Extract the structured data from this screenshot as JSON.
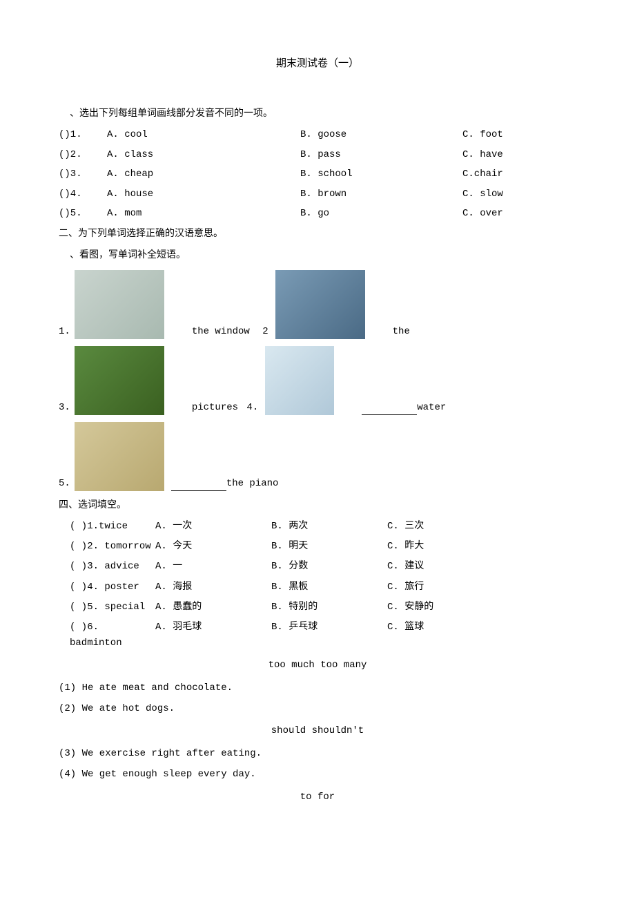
{
  "title": "期末测试卷（一）",
  "section1": {
    "heading": "、选出下列每组单词画线部分发音不同的一项。",
    "rows": [
      {
        "num": "()1.",
        "a": "A. cool",
        "b": "B. goose",
        "c": "C. foot"
      },
      {
        "num": "()2.",
        "a": "A. class",
        "b": "B. pass",
        "c": "C. have"
      },
      {
        "num": "()3.",
        "a": "A. cheap",
        "b": "B. school",
        "c": "C.chair"
      },
      {
        "num": "()4.",
        "a": "A. house",
        "b": "B. brown",
        "c": "C. slow"
      },
      {
        "num": "()5.",
        "a": "A. mom",
        "b": "B. go",
        "c": "C. over"
      }
    ]
  },
  "section2": {
    "heading": "二、为下列单词选择正确的汉语意思。",
    "sub": "、看图，写单词补全短语。"
  },
  "pics": {
    "items": [
      {
        "num": "1.",
        "text_after": "the window",
        "right_num": "2",
        "right_text": "the",
        "bg": "#c9d4ce",
        "bg2": "#7a9bb5"
      },
      {
        "num": "3.",
        "text_after": "pictures",
        "right_num": "4.",
        "right_text": "water",
        "bg": "#5a8a3f",
        "bg2": "#d9e8f0",
        "has_blank": true
      },
      {
        "num": "5.",
        "text_after": "the piano",
        "bg": "#d4c89a",
        "has_blank_before": true
      }
    ]
  },
  "section4_heading": "四、选词填空。",
  "vocab": {
    "rows": [
      {
        "num": "(  )1.twice",
        "a": "A.",
        "ach": "一次",
        "b": "B.",
        "bch": "两次",
        "c": "C.",
        "cch": "三次"
      },
      {
        "num": "(  )2. tomorrow",
        "a": "A.",
        "ach": "今天",
        "b": "B.",
        "bch": "明天",
        "c": "C.",
        "cch": "昨大"
      },
      {
        "num": "(  )3. advice",
        "a": "A.",
        "ach": "一",
        "b": "B.",
        "bch": "分数",
        "c": "C.",
        "cch": "建议"
      },
      {
        "num": "(  )4. poster",
        "a": "A.",
        "ach": "海报",
        "b": "B.",
        "bch": "黑板",
        "c": "C.",
        "cch": "旅行"
      },
      {
        "num": "(  )5. special",
        "a": "A.",
        "ach": "愚蠢的",
        "b": "B.",
        "bch": "特别的",
        "c": "C.",
        "cch": "安静的"
      },
      {
        "num": "(  )6. badminton",
        "a": "A.",
        "ach": "羽毛球",
        "b": "B.",
        "bch": "乒乓球",
        "c": "C.",
        "cch": "篮球"
      }
    ]
  },
  "bank1": "too much too many",
  "fill1": "(1) He ate meat and chocolate.",
  "fill2": "(2) We ate hot dogs.",
  "bank2": "should    shouldn't",
  "fill3": "(3) We exercise right after eating.",
  "fill4": "(4) We get enough sleep every day.",
  "bank3": "to    for"
}
